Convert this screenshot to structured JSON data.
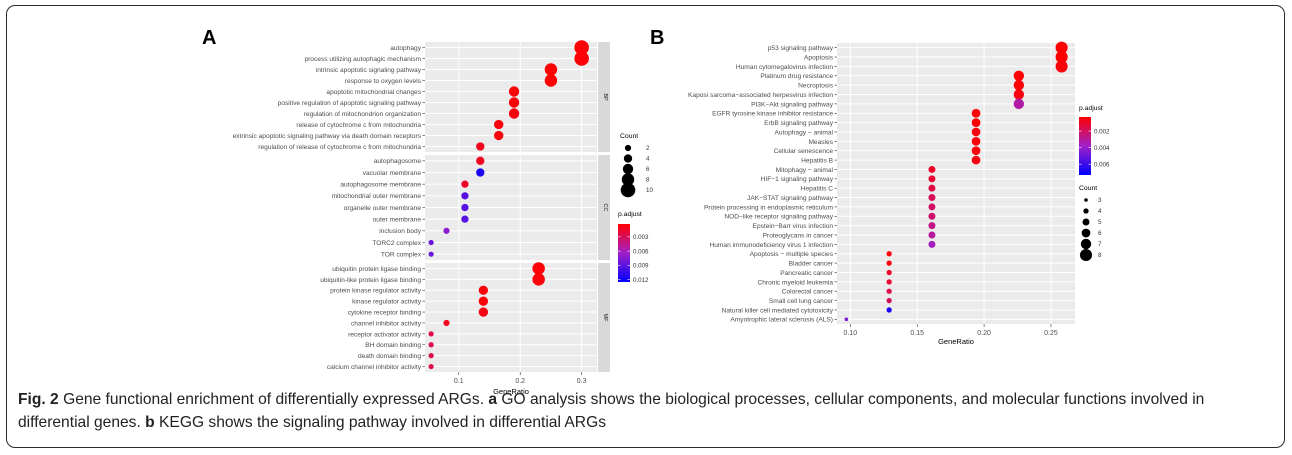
{
  "caption": {
    "fig_label": "Fig. 2",
    "part1": " Gene functional enrichment of differentially expressed ARGs. ",
    "a_label": "a",
    "part2": " GO analysis shows the biological processes, cellular components, and molecular functions involved in differential genes. ",
    "b_label": "b",
    "part3": " KEGG shows the signaling pathway involved in differential ARGs"
  },
  "chart_data": [
    {
      "panel_label": "A",
      "type": "scatter",
      "xlabel": "GeneRatio",
      "xlim": [
        0.045,
        0.325
      ],
      "xticks": [
        0.1,
        0.2,
        0.3
      ],
      "xtick_labels": [
        "0.1",
        "0.2",
        "0.3"
      ],
      "facets": [
        {
          "strip": "BP",
          "terms": [
            {
              "label": "autophagy",
              "x": 0.3,
              "count": 10,
              "padj": 0.0005
            },
            {
              "label": "process utilizing autophagic mechanism",
              "x": 0.3,
              "count": 10,
              "padj": 0.0005
            },
            {
              "label": "intrinsic apoptotic signaling pathway",
              "x": 0.25,
              "count": 8,
              "padj": 0.0004
            },
            {
              "label": "response to oxygen levels",
              "x": 0.25,
              "count": 8,
              "padj": 0.0004
            },
            {
              "label": "apoptotic mitochondrial changes",
              "x": 0.19,
              "count": 6,
              "padj": 0.0006
            },
            {
              "label": "positive regulation of apoptotic signaling pathway",
              "x": 0.19,
              "count": 6,
              "padj": 0.0006
            },
            {
              "label": "regulation of mitochondrion organization",
              "x": 0.19,
              "count": 6,
              "padj": 0.0008
            },
            {
              "label": "release of cytochrome c from mitochondria",
              "x": 0.165,
              "count": 5,
              "padj": 0.0007
            },
            {
              "label": "extrinsic apoptotic signaling pathway via death domain receptors",
              "x": 0.165,
              "count": 5,
              "padj": 0.0006
            },
            {
              "label": "regulation of release of cytochrome c from mitochondria",
              "x": 0.135,
              "count": 4,
              "padj": 0.0012
            }
          ]
        },
        {
          "strip": "CC",
          "terms": [
            {
              "label": "autophagosome",
              "x": 0.135,
              "count": 4,
              "padj": 0.0012
            },
            {
              "label": "vacuolar membrane",
              "x": 0.135,
              "count": 4,
              "padj": 0.0115
            },
            {
              "label": "autophagosome membrane",
              "x": 0.11,
              "count": 3,
              "padj": 0.0015
            },
            {
              "label": "mitochondrial outer membrane",
              "x": 0.11,
              "count": 3,
              "padj": 0.0092
            },
            {
              "label": "organelle outer membrane",
              "x": 0.11,
              "count": 3,
              "padj": 0.0092
            },
            {
              "label": "outer membrane",
              "x": 0.11,
              "count": 3,
              "padj": 0.0092
            },
            {
              "label": "inclusion body",
              "x": 0.08,
              "count": 2,
              "padj": 0.0072
            },
            {
              "label": "TORC2 complex",
              "x": 0.055,
              "count": 1,
              "padj": 0.0085
            },
            {
              "label": "TOR complex",
              "x": 0.055,
              "count": 1,
              "padj": 0.0085
            }
          ]
        },
        {
          "strip": "MF",
          "terms": [
            {
              "label": "ubiquitin protein ligase binding",
              "x": 0.23,
              "count": 8,
              "padj": 0.0005
            },
            {
              "label": "ubiquitin-like protein ligase binding",
              "x": 0.23,
              "count": 8,
              "padj": 0.0005
            },
            {
              "label": "protein kinase regulator activity",
              "x": 0.14,
              "count": 5,
              "padj": 0.0006
            },
            {
              "label": "kinase regulator activity",
              "x": 0.14,
              "count": 5,
              "padj": 0.0006
            },
            {
              "label": "cytokine receptor binding",
              "x": 0.14,
              "count": 5,
              "padj": 0.0009
            },
            {
              "label": "channel inhibitor activity",
              "x": 0.08,
              "count": 2,
              "padj": 0.0012
            },
            {
              "label": "receptor activator activity",
              "x": 0.055,
              "count": 1,
              "padj": 0.0025
            },
            {
              "label": "BH domain binding",
              "x": 0.055,
              "count": 1,
              "padj": 0.0025
            },
            {
              "label": "death domain binding",
              "x": 0.055,
              "count": 1,
              "padj": 0.0025
            },
            {
              "label": "calcium channel inhibitor activity",
              "x": 0.055,
              "count": 1,
              "padj": 0.0025
            }
          ]
        }
      ],
      "legend_count": {
        "title": "Count",
        "values": [
          2,
          4,
          6,
          8,
          10
        ],
        "labels": [
          "2",
          "4",
          "6",
          "8",
          "10"
        ]
      },
      "legend_color": {
        "title": "p.adjust",
        "range": [
          0.0003,
          0.0125
        ],
        "ticks": [
          0.003,
          0.006,
          0.009,
          0.012
        ],
        "tick_labels": [
          "0.003",
          "0.006",
          "0.009",
          "0.012"
        ]
      },
      "colors": {
        "low": "#ff0000",
        "high": "#0000ff"
      },
      "grid": true,
      "legend_position": "right"
    },
    {
      "panel_label": "B",
      "type": "scatter",
      "xlabel": "GeneRatio",
      "xlim": [
        0.09,
        0.268
      ],
      "xticks": [
        0.1,
        0.15,
        0.2,
        0.25
      ],
      "xtick_labels": [
        "0.10",
        "0.15",
        "0.20",
        "0.25"
      ],
      "terms": [
        {
          "label": "p53 signaling pathway",
          "x": 0.258,
          "count": 8,
          "padj": 0.0003
        },
        {
          "label": "Apoptosis",
          "x": 0.258,
          "count": 8,
          "padj": 0.0003
        },
        {
          "label": "Human cytomegalovirus infection",
          "x": 0.258,
          "count": 8,
          "padj": 0.0005
        },
        {
          "label": "Platinum drug resistance",
          "x": 0.226,
          "count": 7,
          "padj": 0.0004
        },
        {
          "label": "Necroptosis",
          "x": 0.226,
          "count": 7,
          "padj": 0.0004
        },
        {
          "label": "Kaposi sarcoma−associated herpesvirus infection",
          "x": 0.226,
          "count": 7,
          "padj": 0.0006
        },
        {
          "label": "PI3K−Akt signaling pathway",
          "x": 0.226,
          "count": 7,
          "padj": 0.0032
        },
        {
          "label": "EGFR tyrosine kinase inhibitor resistance",
          "x": 0.194,
          "count": 6,
          "padj": 0.0004
        },
        {
          "label": "ErbB signaling pathway",
          "x": 0.194,
          "count": 6,
          "padj": 0.0004
        },
        {
          "label": "Autophagy − animal",
          "x": 0.194,
          "count": 6,
          "padj": 0.0006
        },
        {
          "label": "Measles",
          "x": 0.194,
          "count": 6,
          "padj": 0.0005
        },
        {
          "label": "Cellular senescence",
          "x": 0.194,
          "count": 6,
          "padj": 0.0005
        },
        {
          "label": "Hepatitis B",
          "x": 0.194,
          "count": 6,
          "padj": 0.0006
        },
        {
          "label": "Mitophagy − animal",
          "x": 0.161,
          "count": 5,
          "padj": 0.001
        },
        {
          "label": "HIF−1 signaling pathway",
          "x": 0.161,
          "count": 5,
          "padj": 0.0012
        },
        {
          "label": "Hepatitis C",
          "x": 0.161,
          "count": 5,
          "padj": 0.0015
        },
        {
          "label": "JAK−STAT signaling pathway",
          "x": 0.161,
          "count": 5,
          "padj": 0.0018
        },
        {
          "label": "Protein processing in endoplasmic reticulum",
          "x": 0.161,
          "count": 5,
          "padj": 0.0021
        },
        {
          "label": "NOD−like receptor signaling pathway",
          "x": 0.161,
          "count": 5,
          "padj": 0.0022
        },
        {
          "label": "Epstein−Barr virus infection",
          "x": 0.161,
          "count": 5,
          "padj": 0.0026
        },
        {
          "label": "Proteoglycans in cancer",
          "x": 0.161,
          "count": 5,
          "padj": 0.003
        },
        {
          "label": "Human immunodeficiency virus 1 infection",
          "x": 0.161,
          "count": 5,
          "padj": 0.0036
        },
        {
          "label": "Apoptosis − multiple species",
          "x": 0.129,
          "count": 4,
          "padj": 0.0004
        },
        {
          "label": "Bladder cancer",
          "x": 0.129,
          "count": 4,
          "padj": 0.0005
        },
        {
          "label": "Pancreatic cancer",
          "x": 0.129,
          "count": 4,
          "padj": 0.0011
        },
        {
          "label": "Chronic myeloid leukemia",
          "x": 0.129,
          "count": 4,
          "padj": 0.0012
        },
        {
          "label": "Colorectal cancer",
          "x": 0.129,
          "count": 4,
          "padj": 0.0016
        },
        {
          "label": "Small cell lung cancer",
          "x": 0.129,
          "count": 4,
          "padj": 0.0019
        },
        {
          "label": "Natural killer cell mediated cytotoxicity",
          "x": 0.129,
          "count": 4,
          "padj": 0.0068
        },
        {
          "label": "Amyotrophic lateral sclerosis (ALS)",
          "x": 0.097,
          "count": 3,
          "padj": 0.0045
        }
      ],
      "legend_color": {
        "title": "p.adjust",
        "range": [
          0.0003,
          0.0073
        ],
        "ticks": [
          0.002,
          0.004,
          0.006
        ],
        "tick_labels": [
          "0.002",
          "0.004",
          "0.006"
        ]
      },
      "legend_count": {
        "title": "Count",
        "values": [
          3,
          4,
          5,
          6,
          7,
          8
        ],
        "labels": [
          "3",
          "4",
          "5",
          "6",
          "7",
          "8"
        ]
      },
      "colors": {
        "low": "#ff0000",
        "high": "#0000ff"
      },
      "grid": true,
      "legend_position": "right"
    }
  ]
}
